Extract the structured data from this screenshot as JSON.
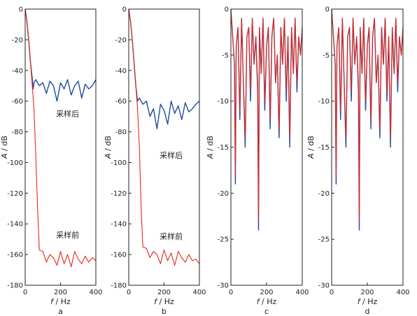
{
  "colors": {
    "before": "#e8261c",
    "after": "#1f4b9e",
    "axis": "#222222"
  },
  "chart_data": [
    {
      "panel_label": "a",
      "type": "line",
      "xlabel_var": "f",
      "xlabel_unit": "Hz",
      "ylabel_var": "A",
      "ylabel_unit": "dB",
      "xlim": [
        0,
        400
      ],
      "ylim": [
        -180,
        0
      ],
      "xticks": [
        0,
        200,
        400
      ],
      "xtick_labels": [
        "0",
        "200",
        "400"
      ],
      "yticks": [
        0,
        -20,
        -40,
        -60,
        -80,
        -100,
        -120,
        -140,
        -160,
        -180
      ],
      "ytick_labels": [
        "0",
        "-20",
        "-40",
        "-60",
        "-80",
        "-100",
        "-120",
        "-140",
        "-160",
        "-180"
      ],
      "annotations": [
        {
          "text": "采样后",
          "x": 240,
          "y": -70
        },
        {
          "text": "采样前",
          "x": 240,
          "y": -149
        }
      ],
      "series": [
        {
          "role": "after",
          "x": [
            0,
            10,
            20,
            30,
            40,
            45,
            50,
            60,
            80,
            100,
            120,
            140,
            160,
            180,
            200,
            220,
            240,
            260,
            280,
            300,
            320,
            340,
            360,
            380,
            400
          ],
          "y": [
            0,
            -8,
            -20,
            -35,
            -45,
            -52,
            -48,
            -46,
            -50,
            -48,
            -55,
            -47,
            -50,
            -60,
            -48,
            -52,
            -46,
            -56,
            -50,
            -47,
            -58,
            -49,
            -52,
            -50,
            -46
          ]
        },
        {
          "role": "before",
          "x": [
            0,
            10,
            20,
            30,
            40,
            50,
            60,
            70,
            80,
            100,
            120,
            140,
            160,
            180,
            200,
            220,
            240,
            260,
            280,
            300,
            320,
            340,
            360,
            380,
            400
          ],
          "y": [
            0,
            -8,
            -20,
            -35,
            -50,
            -65,
            -95,
            -130,
            -157,
            -158,
            -165,
            -160,
            -162,
            -167,
            -158,
            -166,
            -160,
            -168,
            -158,
            -163,
            -166,
            -161,
            -165,
            -162,
            -164
          ]
        }
      ]
    },
    {
      "panel_label": "b",
      "type": "line",
      "xlabel_var": "f",
      "xlabel_unit": "Hz",
      "ylabel_var": "A",
      "ylabel_unit": "dB",
      "xlim": [
        0,
        400
      ],
      "ylim": [
        -180,
        0
      ],
      "xticks": [
        0,
        200,
        400
      ],
      "xtick_labels": [
        "0",
        "200",
        "400"
      ],
      "yticks": [
        0,
        -20,
        -40,
        -60,
        -80,
        -100,
        -120,
        -140,
        -160,
        -180
      ],
      "ytick_labels": [
        "0",
        "-20",
        "-40",
        "-60",
        "-80",
        "-100",
        "-120",
        "-140",
        "-160",
        "-180"
      ],
      "annotations": [
        {
          "text": "采样后",
          "x": 240,
          "y": -97
        },
        {
          "text": "采样前",
          "x": 240,
          "y": -150
        }
      ],
      "series": [
        {
          "role": "after",
          "x": [
            0,
            10,
            20,
            30,
            40,
            50,
            60,
            80,
            100,
            120,
            140,
            160,
            180,
            200,
            220,
            240,
            260,
            280,
            300,
            320,
            340,
            360,
            380,
            400
          ],
          "y": [
            0,
            -8,
            -20,
            -35,
            -50,
            -60,
            -58,
            -62,
            -60,
            -70,
            -65,
            -78,
            -62,
            -66,
            -75,
            -60,
            -68,
            -63,
            -72,
            -61,
            -67,
            -65,
            -62,
            -60
          ]
        },
        {
          "role": "before",
          "x": [
            0,
            10,
            20,
            30,
            40,
            50,
            60,
            70,
            80,
            100,
            120,
            140,
            160,
            180,
            200,
            220,
            240,
            260,
            280,
            300,
            320,
            340,
            360,
            380,
            400
          ],
          "y": [
            0,
            -8,
            -20,
            -35,
            -50,
            -65,
            -90,
            -130,
            -155,
            -156,
            -162,
            -158,
            -160,
            -166,
            -157,
            -164,
            -159,
            -167,
            -158,
            -162,
            -165,
            -160,
            -164,
            -163,
            -166
          ]
        }
      ]
    },
    {
      "panel_label": "c",
      "type": "line",
      "xlabel_var": "f",
      "xlabel_unit": "Hz",
      "ylabel_var": "A",
      "ylabel_unit": "dB",
      "xlim": [
        0,
        400
      ],
      "ylim": [
        -30,
        0
      ],
      "xticks": [
        0,
        200,
        400
      ],
      "xtick_labels": [
        "0",
        "200",
        "400"
      ],
      "yticks": [
        0,
        -5,
        -10,
        -15,
        -20,
        -25,
        -30
      ],
      "ytick_labels": [
        "0",
        "-5",
        "-10",
        "-15",
        "-20",
        "-25",
        "-30"
      ],
      "annotations": [],
      "series": [
        {
          "role": "after",
          "x": [
            0,
            10,
            20,
            25,
            30,
            40,
            50,
            60,
            70,
            80,
            90,
            100,
            110,
            120,
            130,
            140,
            150,
            155,
            160,
            170,
            180,
            190,
            200,
            210,
            220,
            230,
            240,
            250,
            260,
            270,
            280,
            290,
            300,
            310,
            320,
            330,
            340,
            350,
            360,
            370,
            380,
            390,
            400
          ],
          "y": [
            0,
            -3,
            -6,
            -19,
            -4,
            -2,
            -12,
            -1,
            -8,
            -15,
            -3,
            -2,
            -10,
            -1,
            -6,
            -3,
            -9,
            -24,
            -2,
            -7,
            -1,
            -11,
            -4,
            -2,
            -13,
            -3,
            -1,
            -8,
            -5,
            -14,
            -2,
            -6,
            -1,
            -10,
            -3,
            -15,
            -2,
            -7,
            -1,
            -9,
            -3,
            -5,
            -2
          ]
        },
        {
          "role": "before",
          "x": [
            0,
            10,
            20,
            25,
            30,
            40,
            50,
            60,
            70,
            80,
            90,
            100,
            110,
            120,
            130,
            140,
            150,
            155,
            160,
            170,
            180,
            190,
            200,
            210,
            220,
            230,
            240,
            250,
            260,
            270,
            280,
            290,
            300,
            310,
            320,
            330,
            340,
            350,
            360,
            370,
            380,
            390,
            400
          ],
          "y": [
            0,
            -3,
            -6,
            -18,
            -4,
            -2,
            -11,
            -1,
            -8,
            -14,
            -3,
            -2,
            -9,
            -1,
            -6,
            -3,
            -8,
            -23,
            -2,
            -7,
            -1,
            -10,
            -4,
            -2,
            -12,
            -3,
            -1,
            -8,
            -5,
            -13,
            -2,
            -6,
            -1,
            -9,
            -3,
            -14,
            -2,
            -7,
            -1,
            -8,
            -3,
            -5,
            -2
          ]
        }
      ]
    },
    {
      "panel_label": "d",
      "type": "line",
      "xlabel_var": "f",
      "xlabel_unit": "Hz",
      "ylabel_var": "A",
      "ylabel_unit": "dB",
      "xlim": [
        0,
        400
      ],
      "ylim": [
        -30,
        0
      ],
      "xticks": [
        0,
        200,
        400
      ],
      "xtick_labels": [
        "0",
        "200",
        "400"
      ],
      "yticks": [
        0,
        -5,
        -10,
        -15,
        -20,
        -25,
        -30
      ],
      "ytick_labels": [
        "0",
        "-5",
        "-10",
        "-15",
        "-20",
        "-25",
        "-30"
      ],
      "annotations": [],
      "series": [
        {
          "role": "after",
          "x": [
            0,
            10,
            20,
            25,
            30,
            40,
            50,
            60,
            70,
            80,
            90,
            100,
            110,
            120,
            130,
            140,
            150,
            155,
            160,
            170,
            180,
            190,
            200,
            210,
            220,
            230,
            240,
            250,
            260,
            270,
            280,
            290,
            300,
            310,
            320,
            330,
            340,
            350,
            360,
            370,
            380,
            390,
            400
          ],
          "y": [
            0,
            -3,
            -6,
            -19,
            -4,
            -2,
            -12,
            -1,
            -8,
            -15,
            -3,
            -2,
            -10,
            -1,
            -6,
            -3,
            -9,
            -24,
            -2,
            -7,
            -1,
            -11,
            -4,
            -2,
            -13,
            -3,
            -1,
            -8,
            -5,
            -14,
            -2,
            -6,
            -1,
            -10,
            -3,
            -15,
            -2,
            -7,
            -1,
            -9,
            -3,
            -5,
            -2
          ]
        },
        {
          "role": "before",
          "x": [
            0,
            10,
            20,
            25,
            30,
            40,
            50,
            60,
            70,
            80,
            90,
            100,
            110,
            120,
            130,
            140,
            150,
            155,
            160,
            170,
            180,
            190,
            200,
            210,
            220,
            230,
            240,
            250,
            260,
            270,
            280,
            290,
            300,
            310,
            320,
            330,
            340,
            350,
            360,
            370,
            380,
            390,
            400
          ],
          "y": [
            0,
            -3,
            -6,
            -18,
            -4,
            -2,
            -11,
            -1,
            -8,
            -14,
            -3,
            -2,
            -9,
            -1,
            -6,
            -3,
            -8,
            -23,
            -2,
            -7,
            -1,
            -10,
            -4,
            -2,
            -12,
            -3,
            -1,
            -8,
            -5,
            -13,
            -2,
            -6,
            -1,
            -9,
            -3,
            -14,
            -2,
            -7,
            -1,
            -8,
            -3,
            -5,
            -2
          ]
        }
      ]
    }
  ]
}
